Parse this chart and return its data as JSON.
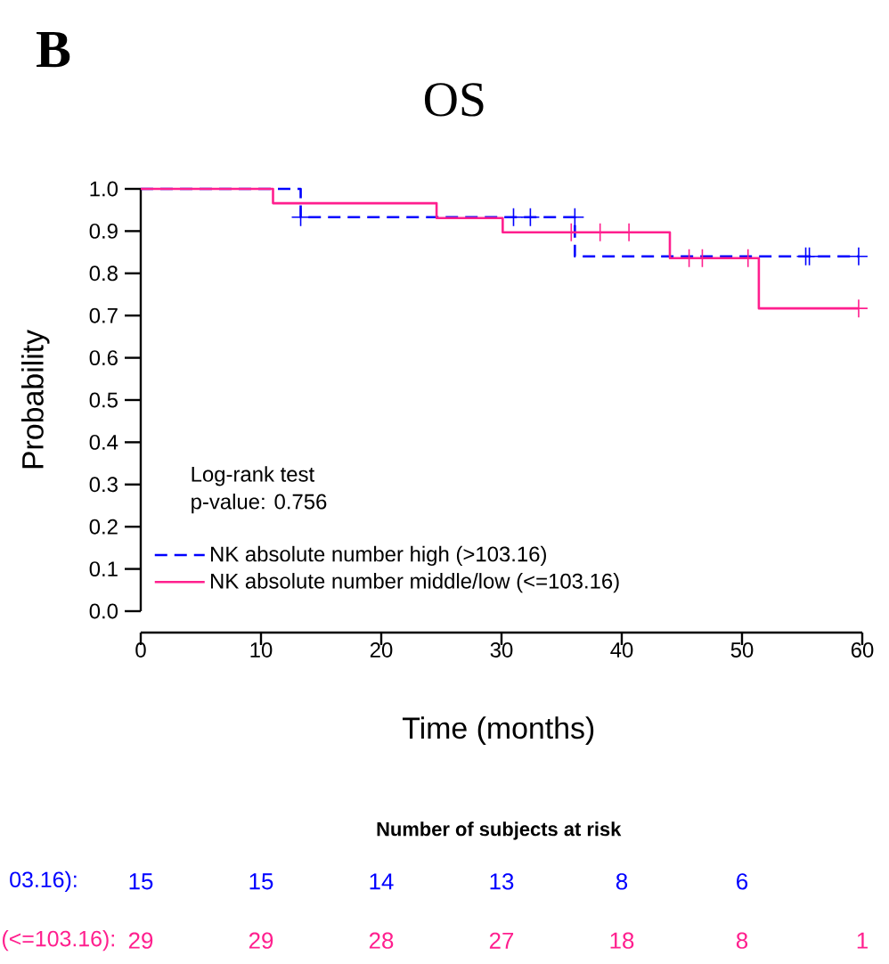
{
  "chart_data": {
    "type": "step",
    "title": "OS",
    "xlabel": "Time (months)",
    "ylabel": "Probability",
    "xlim": [
      0,
      60
    ],
    "ylim": [
      0,
      1
    ],
    "xticks": [
      0,
      10,
      20,
      30,
      40,
      50,
      60
    ],
    "yticks": [
      {
        "value": 0,
        "label": "0.0"
      },
      {
        "value": 0.1,
        "label": "0.1"
      },
      {
        "value": 0.2,
        "label": "0.2"
      },
      {
        "value": 0.3,
        "label": "0.3"
      },
      {
        "value": 0.4,
        "label": "0.4"
      },
      {
        "value": 0.5,
        "label": "0.5"
      },
      {
        "value": 0.6,
        "label": "0.6"
      },
      {
        "value": 0.7,
        "label": "0.7"
      },
      {
        "value": 0.8,
        "label": "0.8"
      },
      {
        "value": 0.9,
        "label": "0.9"
      },
      {
        "value": 1,
        "label": "1.0"
      }
    ],
    "legend": "bottom left",
    "grid": false,
    "series": [
      {
        "name": "NK absolute number high (>103.16)",
        "color": "#0000ff",
        "line_style": "dashed",
        "x": [
          0,
          13.3,
          36.1,
          59.7
        ],
        "values": [
          1,
          0.933,
          0.84,
          0.84
        ]
      },
      {
        "name": "NK absolute number middle/low (<=103.16)",
        "color": "#ff1f8e",
        "line_style": "solid",
        "x": [
          0,
          11.0,
          24.6,
          30.1,
          44.0,
          51.4,
          59.7
        ],
        "values": [
          1,
          0.966,
          0.931,
          0.897,
          0.836,
          0.717,
          0.717
        ]
      },
      {
        "type": "scatter",
        "marker": "cross",
        "color": "#0000ff",
        "x": [
          13.3,
          31.0,
          32.4,
          36.1,
          55.3,
          55.6,
          59.7
        ],
        "values": [
          0.933,
          0.933,
          0.933,
          0.933,
          0.84,
          0.84,
          0.84
        ]
      },
      {
        "type": "scatter",
        "marker": "cross",
        "color": "#ff1f8e",
        "x": [
          35.8,
          38.2,
          40.6,
          45.6,
          46.7,
          50.5,
          59.7
        ],
        "values": [
          0.897,
          0.897,
          0.897,
          0.836,
          0.836,
          0.836,
          0.717
        ]
      }
    ],
    "annotations": [
      "B",
      "Log-rank test",
      "p-value: 0.756",
      "Number of subjects at risk",
      "03.16):",
      "15",
      "15",
      "14",
      "13",
      "8",
      "6",
      "(<=103.16):",
      "29",
      "29",
      "28",
      "27",
      "18",
      "8",
      "1"
    ]
  }
}
